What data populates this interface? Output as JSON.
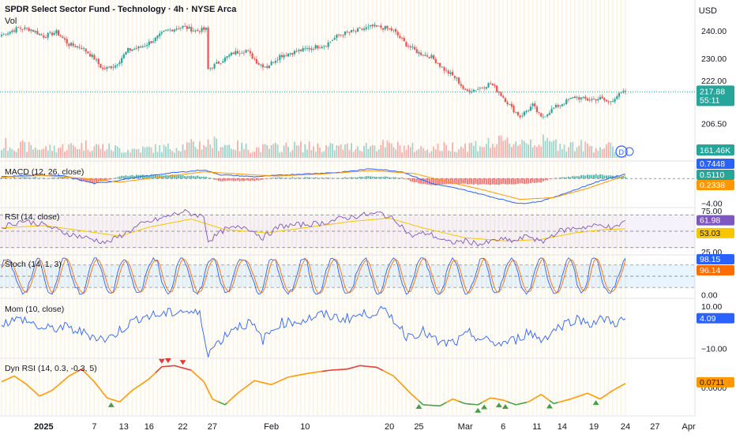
{
  "header": {
    "title": "SPDR Select Sector Fund - Technology · 4h · NYSE Arca",
    "volume_label": "Vol",
    "currency": "USD"
  },
  "badge_letter": "D",
  "colors": {
    "up": "#26a69a",
    "down": "#ef5350",
    "macd": "#2962ff",
    "signal": "#ff9800",
    "rsi": "#7e57c2",
    "rsi_ma": "#f7c600",
    "stoch_k": "#2962ff",
    "stoch_d": "#ff6d00",
    "mom": "#2962ff",
    "dyn": "#ff9800",
    "dyn_up": "#43a047",
    "dyn_down": "#e53935",
    "session": "#fff3e0",
    "grid": "#f0f3fa"
  },
  "chart_data": [
    {
      "type": "candlestick",
      "pane": "price",
      "title": "SPDR Select Sector Fund - Technology · 4h · NYSE Arca",
      "ylabel": "USD",
      "ylim": [
        194,
        246
      ],
      "y_ticks": [
        "240.00",
        "230.00",
        "222.00",
        "206.50"
      ],
      "last_price": "217.88",
      "countdown": "55:11",
      "volume_label": "Vol",
      "volume_value": "161.46K",
      "x_ticks": [
        "2025",
        "7",
        "13",
        "16",
        "22",
        "27",
        "Feb",
        "10",
        "20",
        "25",
        "Mar",
        "6",
        "11",
        "14",
        "19",
        "24",
        "27",
        "Apr"
      ],
      "anchors": [
        [
          0,
          238.5
        ],
        [
          8,
          241
        ],
        [
          14,
          240.5
        ],
        [
          20,
          238
        ],
        [
          26,
          239.5
        ],
        [
          32,
          235
        ],
        [
          38,
          234
        ],
        [
          44,
          230
        ],
        [
          48,
          226
        ],
        [
          54,
          227.5
        ],
        [
          60,
          233
        ],
        [
          66,
          234
        ],
        [
          72,
          236.5
        ],
        [
          78,
          240
        ],
        [
          86,
          241.5
        ],
        [
          92,
          240
        ],
        [
          97,
          240.5
        ],
        [
          98,
          226
        ],
        [
          104,
          229
        ],
        [
          110,
          232
        ],
        [
          116,
          233
        ],
        [
          122,
          228
        ],
        [
          126,
          227
        ],
        [
          132,
          231
        ],
        [
          140,
          232.5
        ],
        [
          148,
          234
        ],
        [
          154,
          235
        ],
        [
          160,
          238.5
        ],
        [
          168,
          240
        ],
        [
          176,
          241.5
        ],
        [
          182,
          241
        ],
        [
          186,
          240
        ],
        [
          192,
          235
        ],
        [
          198,
          232
        ],
        [
          204,
          230.5
        ],
        [
          210,
          226
        ],
        [
          216,
          222.5
        ],
        [
          220,
          218
        ],
        [
          226,
          219
        ],
        [
          232,
          221
        ],
        [
          238,
          216
        ],
        [
          242,
          212
        ],
        [
          246,
          209
        ],
        [
          252,
          213
        ],
        [
          256,
          208.5
        ],
        [
          262,
          212
        ],
        [
          268,
          214.5
        ],
        [
          272,
          216
        ],
        [
          278,
          215
        ],
        [
          284,
          215.5
        ],
        [
          288,
          214
        ],
        [
          292,
          216.5
        ],
        [
          296,
          217.9
        ]
      ],
      "volume_anchors": [
        [
          0,
          60
        ],
        [
          20,
          40
        ],
        [
          40,
          55
        ],
        [
          60,
          35
        ],
        [
          80,
          45
        ],
        [
          100,
          65
        ],
        [
          120,
          40
        ],
        [
          140,
          50
        ],
        [
          160,
          45
        ],
        [
          180,
          55
        ],
        [
          200,
          40
        ],
        [
          230,
          60
        ],
        [
          250,
          75
        ],
        [
          270,
          55
        ],
        [
          290,
          45
        ]
      ]
    },
    {
      "type": "line",
      "pane": "macd",
      "title": "MACD (12, 26, close)",
      "ylim": [
        -4.6,
        2.6
      ],
      "y_ticks": [
        "−4.00"
      ],
      "values": [
        "0.7448",
        "0.5110",
        "0.2338"
      ],
      "series": [
        {
          "name": "MACD",
          "anchors": [
            [
              0,
              0.3
            ],
            [
              16,
              0.6
            ],
            [
              30,
              0.4
            ],
            [
              44,
              -0.8
            ],
            [
              52,
              -0.5
            ],
            [
              64,
              0.2
            ],
            [
              80,
              0.9
            ],
            [
              96,
              1.4
            ],
            [
              104,
              0.6
            ],
            [
              120,
              0.3
            ],
            [
              140,
              0.7
            ],
            [
              160,
              1.0
            ],
            [
              176,
              1.6
            ],
            [
              190,
              1.1
            ],
            [
              204,
              -0.8
            ],
            [
              220,
              -1.9
            ],
            [
              236,
              -3.3
            ],
            [
              246,
              -4.1
            ],
            [
              256,
              -3.7
            ],
            [
              270,
              -2.1
            ],
            [
              282,
              -0.6
            ],
            [
              290,
              0.2
            ],
            [
              296,
              0.74
            ]
          ]
        },
        {
          "name": "Signal",
          "anchors": [
            [
              0,
              0.2
            ],
            [
              20,
              0.5
            ],
            [
              40,
              0.0
            ],
            [
              56,
              -0.6
            ],
            [
              72,
              0.1
            ],
            [
              96,
              1.1
            ],
            [
              110,
              0.8
            ],
            [
              130,
              0.4
            ],
            [
              150,
              0.7
            ],
            [
              176,
              1.3
            ],
            [
              196,
              0.8
            ],
            [
              210,
              -0.4
            ],
            [
              228,
              -1.8
            ],
            [
              246,
              -3.4
            ],
            [
              262,
              -3.1
            ],
            [
              278,
              -1.6
            ],
            [
              290,
              -0.2
            ],
            [
              296,
              0.51
            ]
          ]
        }
      ]
    },
    {
      "type": "line",
      "pane": "rsi",
      "title": "RSI (14, close)",
      "ylim": [
        22,
        78
      ],
      "y_ticks": [
        "75.00",
        "25.00"
      ],
      "band": [
        30,
        70
      ],
      "values": [
        "61.98",
        "53.03"
      ],
      "series": [
        {
          "name": "RSI",
          "anchors": [
            [
              0,
              55
            ],
            [
              10,
              63
            ],
            [
              20,
              58
            ],
            [
              30,
              48
            ],
            [
              40,
              42
            ],
            [
              50,
              36
            ],
            [
              56,
              44
            ],
            [
              66,
              58
            ],
            [
              76,
              66
            ],
            [
              86,
              74
            ],
            [
              96,
              68
            ],
            [
              98,
              38
            ],
            [
              106,
              52
            ],
            [
              116,
              56
            ],
            [
              124,
              42
            ],
            [
              132,
              56
            ],
            [
              142,
              58
            ],
            [
              152,
              60
            ],
            [
              162,
              66
            ],
            [
              172,
              70
            ],
            [
              180,
              72
            ],
            [
              188,
              62
            ],
            [
              194,
              44
            ],
            [
              202,
              48
            ],
            [
              212,
              36
            ],
            [
              220,
              38
            ],
            [
              228,
              34
            ],
            [
              236,
              40
            ],
            [
              244,
              38
            ],
            [
              250,
              45
            ],
            [
              256,
              36
            ],
            [
              264,
              50
            ],
            [
              272,
              54
            ],
            [
              280,
              56
            ],
            [
              286,
              58
            ],
            [
              290,
              52
            ],
            [
              294,
              60
            ],
            [
              296,
              62
            ]
          ]
        },
        {
          "name": "RSI-based MA",
          "anchors": [
            [
              0,
              54
            ],
            [
              20,
              57
            ],
            [
              40,
              50
            ],
            [
              56,
              44
            ],
            [
              70,
              55
            ],
            [
              90,
              65
            ],
            [
              106,
              52
            ],
            [
              126,
              48
            ],
            [
              146,
              55
            ],
            [
              166,
              62
            ],
            [
              184,
              66
            ],
            [
              200,
              54
            ],
            [
              220,
              42
            ],
            [
              240,
              38
            ],
            [
              256,
              40
            ],
            [
              272,
              48
            ],
            [
              286,
              52
            ],
            [
              296,
              53
            ]
          ]
        }
      ]
    },
    {
      "type": "line",
      "pane": "stoch",
      "title": "Stoch (14, 1, 3)",
      "ylim": [
        -5,
        105
      ],
      "y_ticks": [
        "0.00"
      ],
      "band": [
        20,
        80
      ],
      "values": [
        "98.15",
        "96.14"
      ],
      "series": [
        {
          "name": "%K",
          "seed": 3,
          "final": 98.15
        },
        {
          "name": "%D",
          "seed": 3,
          "final": 96.14
        }
      ]
    },
    {
      "type": "line",
      "pane": "momentum",
      "title": "Mom (10, close)",
      "ylim": [
        -14,
        13
      ],
      "y_ticks": [
        "10.00",
        "−10.00"
      ],
      "values": [
        "4.09"
      ],
      "series": [
        {
          "name": "Mom",
          "anchors": [
            [
              0,
              2
            ],
            [
              10,
              4
            ],
            [
              20,
              -1
            ],
            [
              30,
              0
            ],
            [
              40,
              -3
            ],
            [
              50,
              -6
            ],
            [
              58,
              0
            ],
            [
              66,
              5
            ],
            [
              76,
              6
            ],
            [
              86,
              8
            ],
            [
              94,
              6
            ],
            [
              98,
              -12
            ],
            [
              104,
              -6
            ],
            [
              110,
              0
            ],
            [
              118,
              2
            ],
            [
              124,
              -6
            ],
            [
              132,
              2
            ],
            [
              142,
              3
            ],
            [
              152,
              6
            ],
            [
              162,
              4
            ],
            [
              172,
              6
            ],
            [
              180,
              8
            ],
            [
              186,
              4
            ],
            [
              192,
              -4
            ],
            [
              200,
              -2
            ],
            [
              208,
              -8
            ],
            [
              216,
              -7
            ],
            [
              222,
              -3
            ],
            [
              228,
              -6
            ],
            [
              236,
              -8
            ],
            [
              244,
              -6
            ],
            [
              250,
              -2
            ],
            [
              256,
              -6
            ],
            [
              264,
              0
            ],
            [
              272,
              4
            ],
            [
              280,
              2
            ],
            [
              286,
              4
            ],
            [
              292,
              2
            ],
            [
              296,
              4.09
            ]
          ]
        }
      ]
    },
    {
      "type": "line",
      "pane": "dynrsi",
      "title": "Dyn RSI (14, 0.3, -0.3, 5)",
      "ylim": [
        -0.48,
        0.48
      ],
      "y_ticks": [
        "0.0000"
      ],
      "values": [
        "0.0711"
      ],
      "series": [
        {
          "name": "Dyn RSI",
          "anchors": [
            [
              0,
              0.1
            ],
            [
              6,
              0.2
            ],
            [
              12,
              0.05
            ],
            [
              18,
              -0.15
            ],
            [
              24,
              -0.05
            ],
            [
              32,
              0.2
            ],
            [
              38,
              0.32
            ],
            [
              44,
              0.1
            ],
            [
              50,
              -0.18
            ],
            [
              56,
              -0.25
            ],
            [
              62,
              -0.05
            ],
            [
              70,
              0.15
            ],
            [
              76,
              0.36
            ],
            [
              82,
              0.38
            ],
            [
              90,
              0.3
            ],
            [
              96,
              0.1
            ],
            [
              100,
              -0.2
            ],
            [
              106,
              -0.3
            ],
            [
              112,
              -0.1
            ],
            [
              120,
              0.12
            ],
            [
              128,
              0.05
            ],
            [
              136,
              0.18
            ],
            [
              146,
              0.25
            ],
            [
              156,
              0.3
            ],
            [
              164,
              0.32
            ],
            [
              170,
              0.38
            ],
            [
              178,
              0.35
            ],
            [
              186,
              0.2
            ],
            [
              194,
              -0.1
            ],
            [
              200,
              -0.3
            ],
            [
              208,
              -0.32
            ],
            [
              214,
              -0.2
            ],
            [
              220,
              -0.28
            ],
            [
              226,
              -0.3
            ],
            [
              232,
              -0.18
            ],
            [
              238,
              -0.22
            ],
            [
              244,
              -0.3
            ],
            [
              250,
              -0.25
            ],
            [
              256,
              -0.12
            ],
            [
              262,
              -0.28
            ],
            [
              270,
              -0.2
            ],
            [
              278,
              -0.1
            ],
            [
              284,
              -0.2
            ],
            [
              290,
              -0.05
            ],
            [
              296,
              0.07
            ]
          ]
        }
      ],
      "markers_down": [
        76,
        79,
        86
      ],
      "markers_up": [
        52,
        198,
        226,
        229,
        236,
        239,
        260,
        282
      ]
    }
  ]
}
